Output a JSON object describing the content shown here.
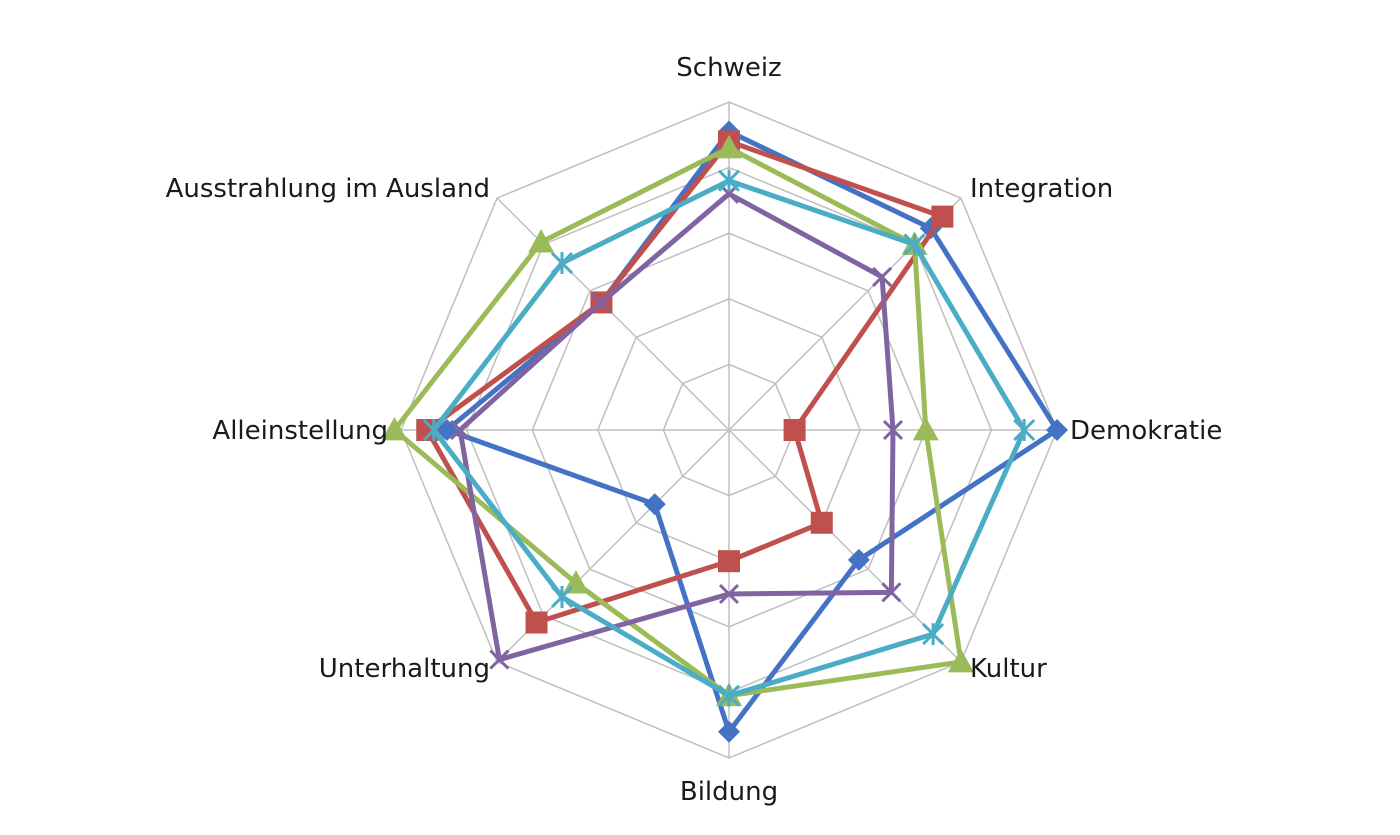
{
  "chart_data": {
    "type": "radar",
    "axes": [
      "Schweiz",
      "Integration",
      "Demokratie",
      "Kultur",
      "Bildung",
      "Unterhaltung",
      "Alleinstellung",
      "Ausstrahlung im Ausland"
    ],
    "r_range": [
      0,
      5
    ],
    "grid_rings": 5,
    "legend": "none",
    "series": [
      {
        "marker": "diamond",
        "color": "#4472C4",
        "values": [
          4.55,
          4.35,
          5.0,
          2.8,
          4.6,
          1.6,
          4.3,
          2.75
        ]
      },
      {
        "marker": "square",
        "color": "#C0504D",
        "values": [
          4.4,
          4.6,
          1.0,
          2.0,
          2.0,
          4.15,
          4.6,
          2.75
        ]
      },
      {
        "marker": "triangle",
        "color": "#9BBB59",
        "values": [
          4.3,
          4.0,
          3.0,
          5.0,
          4.05,
          3.3,
          5.1,
          4.05
        ]
      },
      {
        "marker": "x",
        "color": "#8064A2",
        "values": [
          3.6,
          3.3,
          2.5,
          3.5,
          2.5,
          4.95,
          4.1,
          2.75
        ]
      },
      {
        "marker": "star",
        "color": "#4BACC6",
        "values": [
          3.8,
          4.0,
          4.5,
          4.4,
          4.05,
          3.6,
          4.5,
          3.6
        ]
      }
    ]
  }
}
